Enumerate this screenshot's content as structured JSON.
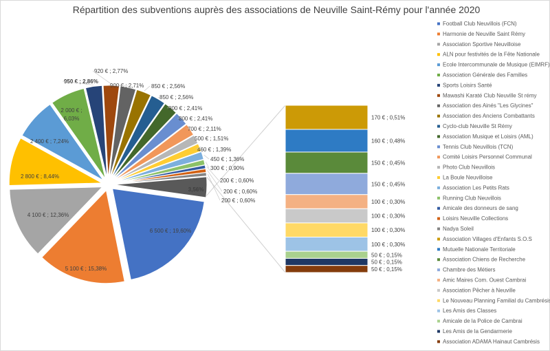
{
  "chart_data": {
    "type": "pie",
    "subtype": "bar-of-pie",
    "title": "Répartition des subventions auprès des associations de Neuville Saint-Rémy pour l'année 2020",
    "legend_position": "right",
    "unit": "€",
    "pie": [
      {
        "name": "Football Club Neuvillois (FCN)",
        "value": 6500,
        "label": "6 500 € ; 19,60%",
        "color": "#4472C4"
      },
      {
        "name": "Harmonie de Neuville Saint Rémy",
        "value": 5100,
        "label": "5 100 € ; 15,38%",
        "color": "#ED7D31"
      },
      {
        "name": "Association Sportive Neuvilloise",
        "value": 4100,
        "label": "4 100 € ; 12,36%",
        "color": "#A5A5A5"
      },
      {
        "name": "ALN pour festivités de la Fête Nationale",
        "value": 2800,
        "label": "2 800 € ; 8,44%",
        "color": "#FFC000"
      },
      {
        "name": "Ecole Intercommunale de Musique (EIMRF)",
        "value": 2400,
        "label": "2 400 € ; 7,24%",
        "color": "#5B9BD5"
      },
      {
        "name": "Association Générale des Familles",
        "value": 2000,
        "label": "2 000 € ; 6,03%",
        "color": "#70AD47"
      },
      {
        "name": "Sports Loisirs Santé",
        "value": 950,
        "label": "950 € ; 2,86%",
        "color": "#264478"
      },
      {
        "name": "Mawashi Karaté Club Neuville St rémy",
        "value": 920,
        "label": "920 € ; 2,77%",
        "color": "#9E480E"
      },
      {
        "name": "Association des Ainés \"Les Glycines\"",
        "value": 900,
        "label": "900 € ; 2,71%",
        "color": "#636363"
      },
      {
        "name": "Association des Anciens Combattants",
        "value": 850,
        "label": "850 € ; 2,56%",
        "color": "#997300"
      },
      {
        "name": "Cyclo-club Neuville St Rémy",
        "value": 850,
        "label": "850 € ; 2,56%",
        "color": "#255E91"
      },
      {
        "name": "Association Musique et Loisirs (AML)",
        "value": 800,
        "label": "800 € ; 2,41%",
        "color": "#43682B"
      },
      {
        "name": "Tennis Club Neuvillois (TCN)",
        "value": 800,
        "label": "800 € ; 2,41%",
        "color": "#698ED0"
      },
      {
        "name": "Comité Loisirs Personnel Communal",
        "value": 700,
        "label": "700 € ; 2,11%",
        "color": "#F1975A"
      },
      {
        "name": "Photo Club Neuvillois",
        "value": 500,
        "label": "500 € ; 1,51%",
        "color": "#B7B7B7"
      },
      {
        "name": "La Boule Neuvilloise",
        "value": 460,
        "label": "460 € ; 1,39%",
        "color": "#FFCD33"
      },
      {
        "name": "Association Les Petits Rats",
        "value": 450,
        "label": "450 € ; 1,36%",
        "color": "#7CAFDD"
      },
      {
        "name": "Running Club Neuvillois",
        "value": 300,
        "label": "300 € ; 0,90%",
        "color": "#8CC168"
      },
      {
        "name": "Amicale des donneurs de sang",
        "value": 200,
        "label": "200 € ; 0,60%",
        "color": "#335AA1"
      },
      {
        "name": "Loisirs Neuville Collections",
        "value": 200,
        "label": "200 € ; 0,60%",
        "color": "#D26012"
      },
      {
        "name": "Nadya Soleil",
        "value": 200,
        "label": "200 € ; 0,60%",
        "color": "#848484"
      }
    ],
    "other": {
      "value": 1180,
      "label": "3,56%",
      "color": "#595959"
    },
    "bar": [
      {
        "name": "Association Villages d'Enfants S.O.S",
        "value": 170,
        "label": "170 € ; 0,51%",
        "color": "#CC9A06"
      },
      {
        "name": "Mutuelle Nationale Territoriale",
        "value": 160,
        "label": "160 € ; 0,48%",
        "color": "#2E7BC4"
      },
      {
        "name": "Association Chiens de Recherche",
        "value": 150,
        "label": "150 € ; 0,45%",
        "color": "#5A8A3A"
      },
      {
        "name": "Chambre des Métiers",
        "value": 150,
        "label": "150 € ; 0,45%",
        "color": "#8FAADC"
      },
      {
        "name": "Amic Maires Com. Ouest Cambrai",
        "value": 100,
        "label": "100 € ; 0,30%",
        "color": "#F4B183"
      },
      {
        "name": "Association Pêcher à Neuville",
        "value": 100,
        "label": "100 € ; 0,30%",
        "color": "#C9C9C9"
      },
      {
        "name": "Le Nouveau Planning Familial du Cambrésis",
        "value": 100,
        "label": "100 € ; 0,30%",
        "color": "#FFD966"
      },
      {
        "name": "Les Amis des Classes",
        "value": 100,
        "label": "100 € ; 0,30%",
        "color": "#9DC3E6"
      },
      {
        "name": "Amicale de la Police de Cambrai",
        "value": 50,
        "label": "50 € ; 0,15%",
        "color": "#A9D18E"
      },
      {
        "name": "Les Amis de la Gendarmerie",
        "value": 50,
        "label": "50 € ; 0,15%",
        "color": "#1F3864"
      },
      {
        "name": "Association ADAMA Hainaut Cambrésis",
        "value": 50,
        "label": "50 € ; 0,15%",
        "color": "#843C0C"
      }
    ]
  }
}
